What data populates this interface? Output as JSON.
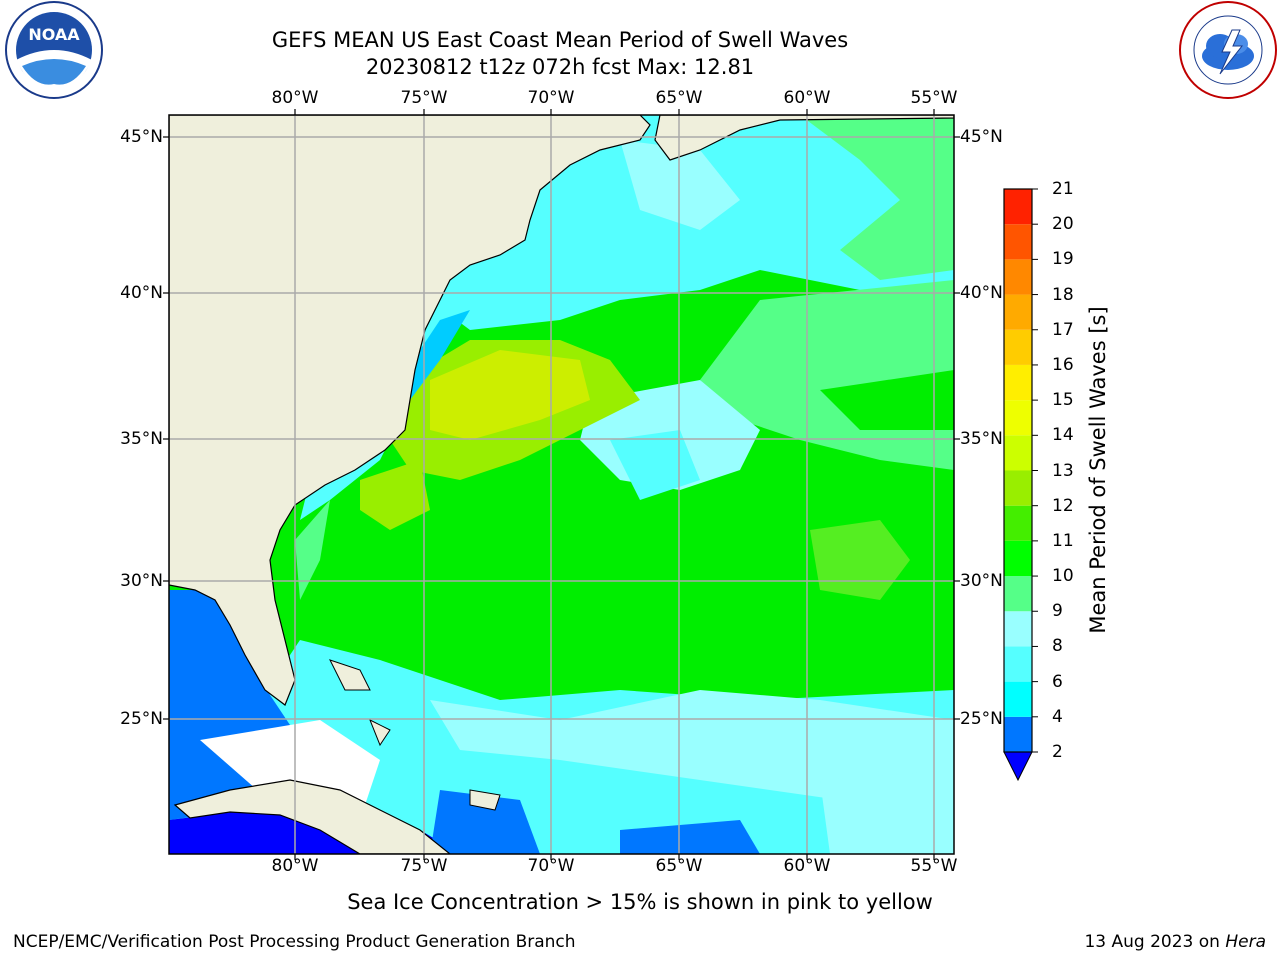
{
  "title_line1": "GEFS MEAN US East Coast Mean Period of Swell Waves",
  "title_line2": "20230812 t12z 072h fcst   Max: 12.81",
  "lon_labels": [
    "80°W",
    "75°W",
    "70°W",
    "65°W",
    "60°W",
    "55°W"
  ],
  "lat_labels": [
    "45°N",
    "40°N",
    "35°N",
    "30°N",
    "25°N"
  ],
  "colorbar": {
    "title": "Mean Period of Swell Waves [s]",
    "ticks": [
      "2",
      "4",
      "6",
      "8",
      "9",
      "10",
      "11",
      "12",
      "13",
      "14",
      "15",
      "16",
      "17",
      "18",
      "19",
      "20",
      "21"
    ],
    "colors": [
      "#0077ff",
      "#00ccff",
      "#00ffff",
      "#55ffff",
      "#99ffff",
      "#55ff88",
      "#00ff00",
      "#44ee00",
      "#99ee00",
      "#ccff00",
      "#eeff00",
      "#ffee00",
      "#ffcc00",
      "#ffaa00",
      "#ff8800",
      "#ff5500",
      "#ff2200",
      "#ff0000"
    ],
    "under_color": "#0000ff"
  },
  "footnote": "Sea Ice Concentration > 15% is shown in pink to yellow",
  "credit": "NCEP/EMC/Verification Post Processing Product Generation Branch",
  "date": "13 Aug 2023 on",
  "host": "Hera",
  "logos": {
    "left": "NOAA",
    "right": "NATIONAL WEATHER SERVICE"
  }
}
